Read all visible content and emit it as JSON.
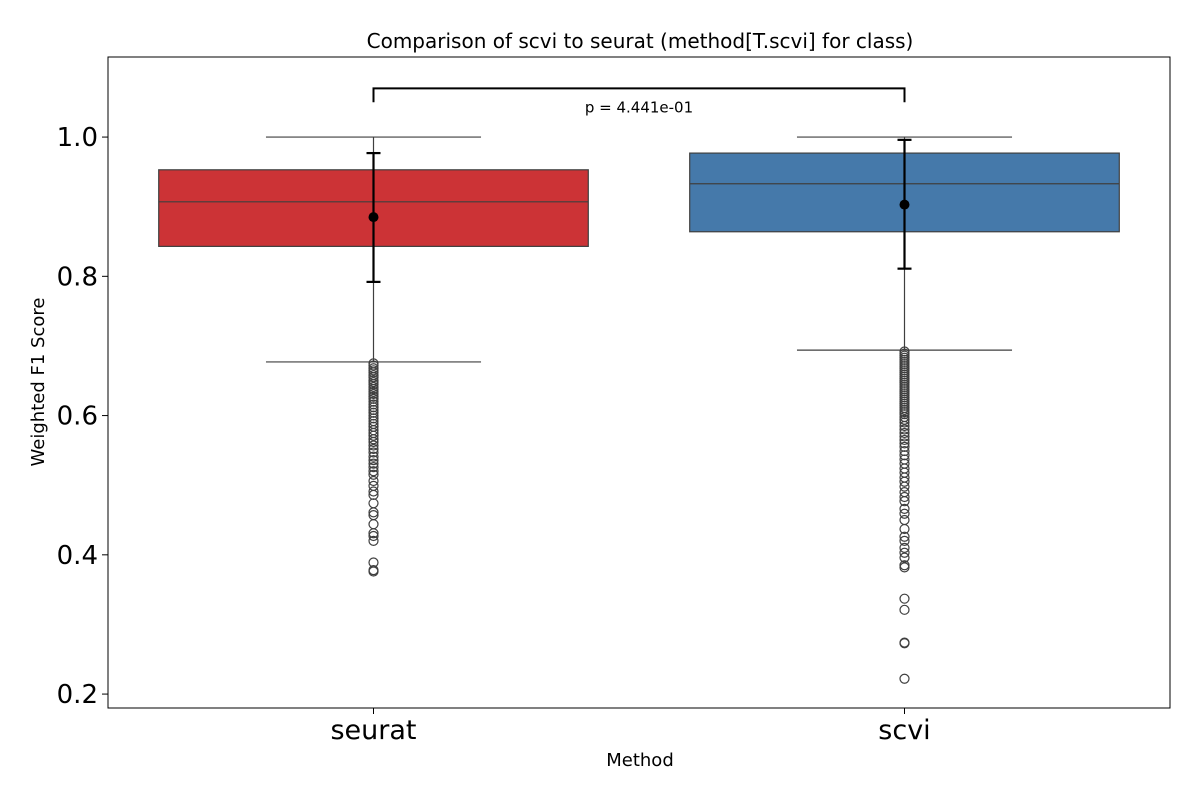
{
  "chart_data": {
    "type": "box",
    "title": "Comparison of scvi to seurat (method[T.scvi] for class)",
    "xlabel": "Method",
    "ylabel": "Weighted F1 Score",
    "ylim": [
      0.18,
      1.115
    ],
    "yticks": [
      0.2,
      0.4,
      0.6,
      0.8,
      1.0
    ],
    "ytick_labels": [
      "0.2",
      "0.4",
      "0.6",
      "0.8",
      "1.0"
    ],
    "categories": [
      "seurat",
      "scvi"
    ],
    "colors": [
      "#cc3336",
      "#4579aa"
    ],
    "boxes": [
      {
        "name": "seurat",
        "q1": 0.843,
        "median": 0.907,
        "q3": 0.953,
        "whisker_low": 0.677,
        "whisker_high": 1.0,
        "mean": 0.885,
        "mean_err_low": 0.792,
        "mean_err_high": 0.977,
        "outliers": [
          0.675,
          0.672,
          0.668,
          0.665,
          0.662,
          0.658,
          0.655,
          0.651,
          0.648,
          0.645,
          0.641,
          0.638,
          0.634,
          0.631,
          0.627,
          0.624,
          0.62,
          0.616,
          0.612,
          0.608,
          0.604,
          0.6,
          0.596,
          0.592,
          0.588,
          0.584,
          0.579,
          0.575,
          0.571,
          0.566,
          0.562,
          0.557,
          0.552,
          0.547,
          0.541,
          0.536,
          0.531,
          0.526,
          0.52,
          0.515,
          0.506,
          0.499,
          0.491,
          0.486,
          0.474,
          0.461,
          0.457,
          0.444,
          0.431,
          0.427,
          0.42,
          0.389,
          0.378,
          0.376
        ]
      },
      {
        "name": "scvi",
        "q1": 0.864,
        "median": 0.933,
        "q3": 0.977,
        "whisker_low": 0.694,
        "whisker_high": 1.0,
        "mean": 0.903,
        "mean_err_low": 0.811,
        "mean_err_high": 0.996,
        "outliers": [
          0.692,
          0.689,
          0.686,
          0.683,
          0.68,
          0.677,
          0.674,
          0.671,
          0.668,
          0.665,
          0.662,
          0.659,
          0.656,
          0.653,
          0.65,
          0.647,
          0.644,
          0.641,
          0.638,
          0.635,
          0.632,
          0.629,
          0.626,
          0.623,
          0.62,
          0.617,
          0.614,
          0.611,
          0.608,
          0.605,
          0.602,
          0.598,
          0.594,
          0.59,
          0.585,
          0.58,
          0.575,
          0.57,
          0.565,
          0.56,
          0.555,
          0.549,
          0.543,
          0.537,
          0.531,
          0.524,
          0.518,
          0.511,
          0.505,
          0.498,
          0.49,
          0.483,
          0.477,
          0.466,
          0.459,
          0.45,
          0.437,
          0.426,
          0.42,
          0.41,
          0.403,
          0.396,
          0.385,
          0.382,
          0.337,
          0.321,
          0.274,
          0.273,
          0.222
        ]
      }
    ],
    "annotation": {
      "text": "p = 4.441e-01",
      "bracket_y": 1.07,
      "bracket_drop": 0.02,
      "text_y": 1.035
    },
    "grid": false,
    "legend": "none"
  }
}
